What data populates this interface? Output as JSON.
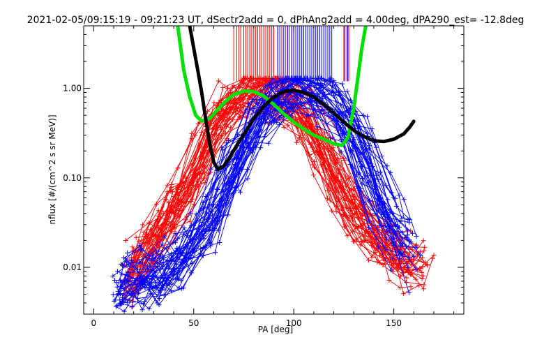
{
  "chart_data": {
    "type": "scatter",
    "title": "2021-02-05/09:15:19 - 09:21:23 UT, dSectr2add = 0, dPhAng2add = 4.00deg, dPA290_est= -12.8deg",
    "xlabel": "PA [deg]",
    "ylabel": "nflux [#/(cm^2 s sr MeV)]",
    "xlim": [
      -5,
      185
    ],
    "ylim": [
      0.003,
      5.0
    ],
    "yscale": "log",
    "grid": false,
    "legend": "none",
    "x_ticks": [
      "0",
      "50",
      "100",
      "150"
    ],
    "y_ticks": [
      "0.01",
      "0.10",
      "1.00"
    ],
    "colors": {
      "red_series": "#ff0000",
      "blue_series": "#0000ff",
      "green_fit": "#00e000",
      "black_fit": "#000000"
    },
    "series": [
      {
        "color": "red_series",
        "kind": "pitch-angle distribution traces (+ markers)",
        "representative_x": [
          14,
          20,
          26,
          32,
          38,
          44,
          50,
          54,
          60,
          68,
          76,
          84,
          92,
          98,
          104,
          110,
          116,
          122,
          128,
          134,
          142,
          150,
          158,
          166,
          172
        ],
        "representative_y": [
          0.006,
          0.01,
          0.016,
          0.025,
          0.04,
          0.06,
          0.09,
          0.2,
          0.45,
          0.75,
          0.92,
          0.98,
          0.9,
          0.75,
          0.5,
          0.3,
          0.16,
          0.08,
          0.045,
          0.03,
          0.02,
          0.015,
          0.012,
          0.01,
          0.009
        ]
      },
      {
        "color": "blue_series",
        "kind": "pitch-angle distribution traces (+ markers)",
        "representative_x": [
          9,
          16,
          24,
          32,
          40,
          48,
          54,
          60,
          68,
          76,
          84,
          92,
          98,
          104,
          110,
          118,
          124,
          130,
          136,
          142,
          150,
          158,
          164
        ],
        "representative_y": [
          0.005,
          0.006,
          0.007,
          0.008,
          0.01,
          0.014,
          0.02,
          0.04,
          0.1,
          0.25,
          0.5,
          0.8,
          0.95,
          0.98,
          0.95,
          0.8,
          0.55,
          0.3,
          0.15,
          0.07,
          0.03,
          0.015,
          0.01
        ]
      },
      {
        "color": "green_fit",
        "kind": "fit curve (dots)",
        "x": [
          42,
          45,
          48,
          51,
          54,
          58,
          62,
          66,
          70,
          75,
          80,
          85,
          90,
          95,
          100,
          105,
          110,
          115,
          120,
          124,
          127,
          130,
          132,
          134,
          136
        ],
        "y": [
          5.0,
          1.6,
          0.8,
          0.5,
          0.43,
          0.46,
          0.58,
          0.72,
          0.85,
          0.93,
          0.92,
          0.82,
          0.66,
          0.52,
          0.42,
          0.35,
          0.3,
          0.27,
          0.24,
          0.23,
          0.28,
          0.6,
          1.3,
          2.8,
          5.0
        ]
      },
      {
        "color": "black_fit",
        "kind": "fit curve (dots)",
        "x": [
          48,
          50,
          52,
          54,
          56,
          58,
          60,
          62,
          65,
          68,
          72,
          76,
          80,
          85,
          90,
          95,
          100,
          105,
          110,
          115,
          120,
          125,
          130,
          135,
          140,
          145,
          150,
          155,
          158,
          160
        ],
        "y": [
          5.0,
          2.8,
          1.6,
          0.9,
          0.45,
          0.24,
          0.15,
          0.125,
          0.135,
          0.17,
          0.24,
          0.33,
          0.46,
          0.63,
          0.8,
          0.92,
          0.95,
          0.9,
          0.8,
          0.66,
          0.53,
          0.42,
          0.34,
          0.29,
          0.26,
          0.255,
          0.27,
          0.31,
          0.37,
          0.43
        ]
      }
    ],
    "vertical_ticks": {
      "y_range": [
        1.2,
        5.0
      ],
      "red_x": [
        70,
        71.5,
        72.5,
        73.5,
        75,
        76,
        77,
        78,
        79,
        80,
        81,
        82,
        83,
        84,
        85,
        86,
        87,
        88,
        89,
        90,
        92,
        94,
        96,
        97,
        98,
        99,
        100,
        125,
        126.5,
        127.5
      ],
      "blue_x": [
        92,
        93,
        95,
        97,
        99,
        100,
        101,
        102,
        103,
        104,
        105,
        106,
        107,
        108,
        109,
        110,
        111,
        112,
        113,
        114,
        115,
        116,
        117,
        118,
        119,
        125.5,
        127
      ]
    }
  }
}
